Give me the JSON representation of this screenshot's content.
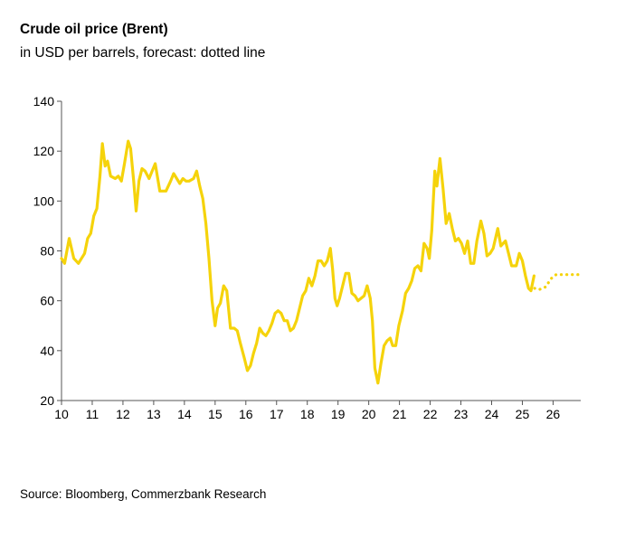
{
  "chart_data": {
    "type": "line",
    "title": "Crude oil price (Brent)",
    "subtitle": "in USD per barrels, forecast: dotted line",
    "xlabel": "",
    "ylabel": "",
    "xlim": [
      2010,
      2026.9
    ],
    "ylim": [
      20,
      140
    ],
    "y_ticks": [
      20,
      40,
      60,
      80,
      100,
      120,
      140
    ],
    "x_ticks": [
      "10",
      "11",
      "12",
      "13",
      "14",
      "15",
      "16",
      "17",
      "18",
      "19",
      "20",
      "21",
      "22",
      "23",
      "24",
      "25",
      "26"
    ],
    "grid": false,
    "legend": "none",
    "color": "#f5d30b",
    "series": [
      {
        "style": "solid",
        "points": [
          [
            2010.0,
            77
          ],
          [
            2010.1,
            75
          ],
          [
            2010.25,
            85
          ],
          [
            2010.4,
            77
          ],
          [
            2010.55,
            75
          ],
          [
            2010.75,
            79
          ],
          [
            2010.85,
            85
          ],
          [
            2010.95,
            87
          ],
          [
            2011.05,
            94
          ],
          [
            2011.15,
            97
          ],
          [
            2011.25,
            110
          ],
          [
            2011.33,
            123
          ],
          [
            2011.42,
            114
          ],
          [
            2011.5,
            116
          ],
          [
            2011.6,
            110
          ],
          [
            2011.75,
            109
          ],
          [
            2011.85,
            110
          ],
          [
            2011.95,
            108
          ],
          [
            2012.05,
            115
          ],
          [
            2012.17,
            124
          ],
          [
            2012.25,
            121
          ],
          [
            2012.35,
            108
          ],
          [
            2012.43,
            96
          ],
          [
            2012.52,
            108
          ],
          [
            2012.62,
            113
          ],
          [
            2012.72,
            112
          ],
          [
            2012.85,
            109
          ],
          [
            2012.95,
            112
          ],
          [
            2013.05,
            115
          ],
          [
            2013.2,
            104
          ],
          [
            2013.4,
            104
          ],
          [
            2013.55,
            108
          ],
          [
            2013.65,
            111
          ],
          [
            2013.75,
            109
          ],
          [
            2013.85,
            107
          ],
          [
            2013.95,
            109
          ],
          [
            2014.05,
            108
          ],
          [
            2014.15,
            108
          ],
          [
            2014.3,
            109
          ],
          [
            2014.4,
            112
          ],
          [
            2014.5,
            106
          ],
          [
            2014.6,
            101
          ],
          [
            2014.7,
            91
          ],
          [
            2014.8,
            77
          ],
          [
            2014.9,
            60
          ],
          [
            2015.0,
            50
          ],
          [
            2015.08,
            57
          ],
          [
            2015.17,
            59
          ],
          [
            2015.28,
            66
          ],
          [
            2015.38,
            64
          ],
          [
            2015.5,
            49
          ],
          [
            2015.62,
            49
          ],
          [
            2015.72,
            48
          ],
          [
            2015.82,
            43
          ],
          [
            2015.95,
            37
          ],
          [
            2016.05,
            32
          ],
          [
            2016.15,
            34
          ],
          [
            2016.25,
            39
          ],
          [
            2016.35,
            43
          ],
          [
            2016.45,
            49
          ],
          [
            2016.55,
            47
          ],
          [
            2016.65,
            46
          ],
          [
            2016.75,
            48
          ],
          [
            2016.85,
            51
          ],
          [
            2016.95,
            55
          ],
          [
            2017.05,
            56
          ],
          [
            2017.15,
            55
          ],
          [
            2017.25,
            52
          ],
          [
            2017.35,
            52
          ],
          [
            2017.45,
            48
          ],
          [
            2017.55,
            49
          ],
          [
            2017.65,
            52
          ],
          [
            2017.75,
            57
          ],
          [
            2017.85,
            62
          ],
          [
            2017.95,
            64
          ],
          [
            2018.05,
            69
          ],
          [
            2018.15,
            66
          ],
          [
            2018.25,
            70
          ],
          [
            2018.35,
            76
          ],
          [
            2018.45,
            76
          ],
          [
            2018.55,
            74
          ],
          [
            2018.65,
            76
          ],
          [
            2018.75,
            81
          ],
          [
            2018.82,
            73
          ],
          [
            2018.9,
            61
          ],
          [
            2018.97,
            58
          ],
          [
            2019.05,
            61
          ],
          [
            2019.15,
            66
          ],
          [
            2019.25,
            71
          ],
          [
            2019.35,
            71
          ],
          [
            2019.45,
            63
          ],
          [
            2019.55,
            62
          ],
          [
            2019.65,
            60
          ],
          [
            2019.75,
            61
          ],
          [
            2019.85,
            62
          ],
          [
            2019.95,
            66
          ],
          [
            2020.05,
            61
          ],
          [
            2020.12,
            52
          ],
          [
            2020.2,
            33
          ],
          [
            2020.3,
            27
          ],
          [
            2020.4,
            35
          ],
          [
            2020.5,
            42
          ],
          [
            2020.6,
            44
          ],
          [
            2020.7,
            45
          ],
          [
            2020.78,
            42
          ],
          [
            2020.88,
            42
          ],
          [
            2020.98,
            50
          ],
          [
            2021.1,
            56
          ],
          [
            2021.2,
            63
          ],
          [
            2021.3,
            65
          ],
          [
            2021.4,
            68
          ],
          [
            2021.5,
            73
          ],
          [
            2021.6,
            74
          ],
          [
            2021.7,
            72
          ],
          [
            2021.8,
            83
          ],
          [
            2021.9,
            81
          ],
          [
            2021.97,
            77
          ],
          [
            2022.05,
            88
          ],
          [
            2022.15,
            112
          ],
          [
            2022.22,
            106
          ],
          [
            2022.32,
            117
          ],
          [
            2022.42,
            105
          ],
          [
            2022.52,
            91
          ],
          [
            2022.62,
            95
          ],
          [
            2022.72,
            89
          ],
          [
            2022.82,
            84
          ],
          [
            2022.92,
            85
          ],
          [
            2023.02,
            83
          ],
          [
            2023.12,
            79
          ],
          [
            2023.22,
            84
          ],
          [
            2023.32,
            75
          ],
          [
            2023.42,
            75
          ],
          [
            2023.52,
            84
          ],
          [
            2023.65,
            92
          ],
          [
            2023.75,
            87
          ],
          [
            2023.85,
            78
          ],
          [
            2023.95,
            79
          ],
          [
            2024.05,
            81
          ],
          [
            2024.2,
            89
          ],
          [
            2024.3,
            82
          ],
          [
            2024.45,
            84
          ],
          [
            2024.55,
            79
          ],
          [
            2024.65,
            74
          ],
          [
            2024.8,
            74
          ],
          [
            2024.9,
            79
          ],
          [
            2025.0,
            76
          ],
          [
            2025.1,
            70
          ],
          [
            2025.2,
            65
          ],
          [
            2025.28,
            64
          ],
          [
            2025.38,
            70
          ]
        ]
      },
      {
        "style": "dotted",
        "points": [
          [
            2025.4,
            65
          ],
          [
            2025.55,
            64.5
          ],
          [
            2025.75,
            65.5
          ],
          [
            2025.95,
            69
          ],
          [
            2026.1,
            70.5
          ],
          [
            2026.4,
            70.5
          ],
          [
            2026.85,
            70.5
          ]
        ]
      }
    ]
  },
  "source": "Source: Bloomberg, Commerzbank Research"
}
